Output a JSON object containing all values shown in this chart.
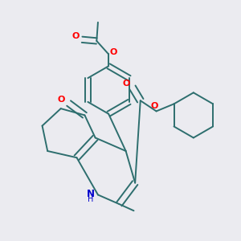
{
  "bg_color": "#ebebf0",
  "bond_color": "#2d6e6e",
  "o_color": "#ff0000",
  "n_color": "#0000cc",
  "lw": 1.4,
  "figsize": [
    3.0,
    3.0
  ],
  "dpi": 100,
  "xlim": [
    0.05,
    0.95
  ],
  "ylim": [
    0.05,
    0.95
  ]
}
